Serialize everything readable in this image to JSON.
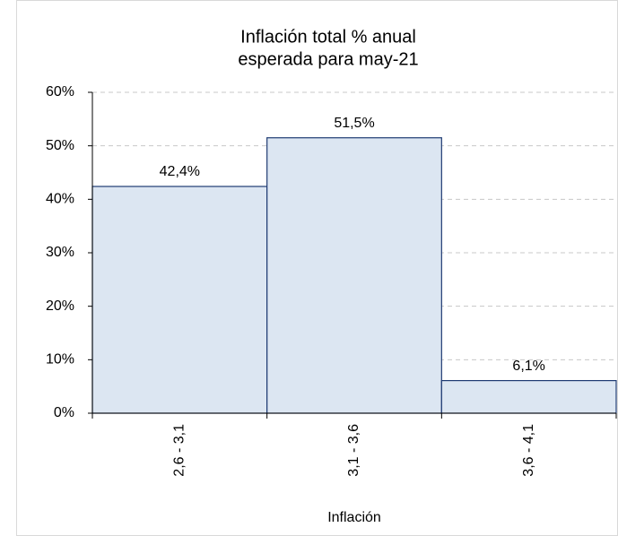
{
  "chart_data": {
    "type": "bar",
    "title": [
      "Inflación total % anual",
      "esperada para may-21"
    ],
    "x_label": "Inflación",
    "categories": [
      "2,6 - 3,1",
      "3,1 - 3,6",
      "3,6 - 4,1"
    ],
    "values": [
      42.4,
      51.5,
      6.1
    ],
    "value_labels": [
      "42,4%",
      "51,5%",
      "6,1%"
    ],
    "color": "#dce6f2",
    "edge_color": "#1f3b73",
    "ylim": [
      0,
      60
    ],
    "yticks": [
      {
        "value": 0,
        "label": "0%"
      },
      {
        "value": 10,
        "label": "10%"
      },
      {
        "value": 20,
        "label": "20%"
      },
      {
        "value": 30,
        "label": "30%"
      },
      {
        "value": 40,
        "label": "40%"
      },
      {
        "value": 50,
        "label": "50%"
      },
      {
        "value": 60,
        "label": "60%"
      }
    ],
    "grid": true
  }
}
